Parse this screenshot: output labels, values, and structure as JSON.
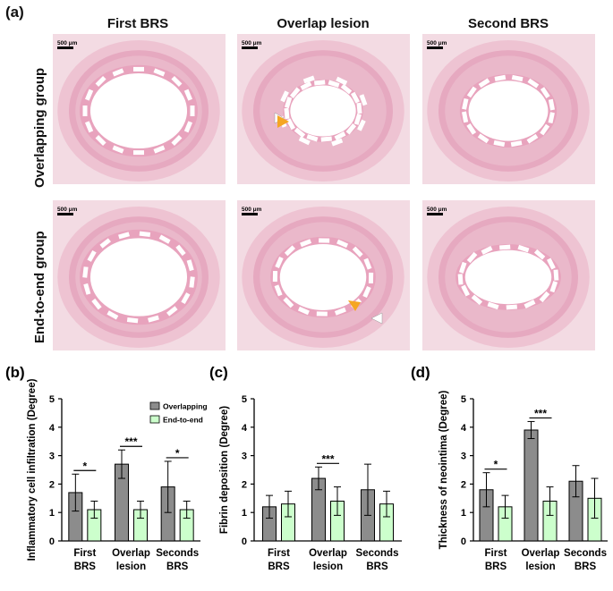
{
  "panel_a": {
    "label": "(a)",
    "columns": [
      "First BRS",
      "Overlap lesion",
      "Second BRS"
    ],
    "rows": [
      "Overlapping group",
      "End-to-end  group"
    ],
    "scale_bar": "500 μm"
  },
  "chart_data": [
    {
      "panel": "(b)",
      "type": "bar",
      "ylabel": "Inflammatory cell infiltration (Degree)",
      "ylim": [
        0,
        5
      ],
      "yticks": [
        "0",
        "1",
        "2",
        "3",
        "4",
        "5"
      ],
      "categories": [
        [
          "First",
          "BRS"
        ],
        [
          "Overlap",
          "lesion"
        ],
        [
          "Seconds",
          "BRS"
        ]
      ],
      "series": [
        {
          "name": "Overlapping",
          "color": "#8c8c8c",
          "values": [
            1.7,
            2.7,
            1.9
          ],
          "errors": [
            0.65,
            0.5,
            0.9
          ]
        },
        {
          "name": "End-to-end",
          "color": "#ccffcc",
          "values": [
            1.1,
            1.1,
            1.1
          ],
          "errors": [
            0.3,
            0.3,
            0.3
          ]
        }
      ],
      "significance": [
        "*",
        "***",
        "*"
      ],
      "legend": [
        "Overlapping",
        "End-to-end"
      ]
    },
    {
      "panel": "(c)",
      "type": "bar",
      "ylabel": "Fibrin deposition (Degree)",
      "ylim": [
        0,
        5
      ],
      "yticks": [
        "0",
        "1",
        "2",
        "3",
        "4",
        "5"
      ],
      "categories": [
        [
          "First",
          "BRS"
        ],
        [
          "Overlap",
          "lesion"
        ],
        [
          "Seconds",
          "BRS"
        ]
      ],
      "series": [
        {
          "name": "Overlapping",
          "color": "#8c8c8c",
          "values": [
            1.2,
            2.2,
            1.8
          ],
          "errors": [
            0.4,
            0.4,
            0.9
          ]
        },
        {
          "name": "End-to-end",
          "color": "#ccffcc",
          "values": [
            1.3,
            1.4,
            1.3
          ],
          "errors": [
            0.45,
            0.5,
            0.45
          ]
        }
      ],
      "significance": [
        "",
        "***",
        ""
      ]
    },
    {
      "panel": "(d)",
      "type": "bar",
      "ylabel": "Thickness of neointima (Degree)",
      "ylim": [
        0,
        5
      ],
      "yticks": [
        "0",
        "1",
        "2",
        "3",
        "4",
        "5"
      ],
      "categories": [
        [
          "First",
          "BRS"
        ],
        [
          "Overlap",
          "lesion"
        ],
        [
          "Seconds",
          "BRS"
        ]
      ],
      "series": [
        {
          "name": "Overlapping",
          "color": "#8c8c8c",
          "values": [
            1.8,
            3.9,
            2.1
          ],
          "errors": [
            0.6,
            0.3,
            0.55
          ]
        },
        {
          "name": "End-to-end",
          "color": "#ccffcc",
          "values": [
            1.2,
            1.4,
            1.5
          ],
          "errors": [
            0.4,
            0.5,
            0.7
          ]
        }
      ],
      "significance": [
        "*",
        "***",
        ""
      ]
    }
  ]
}
